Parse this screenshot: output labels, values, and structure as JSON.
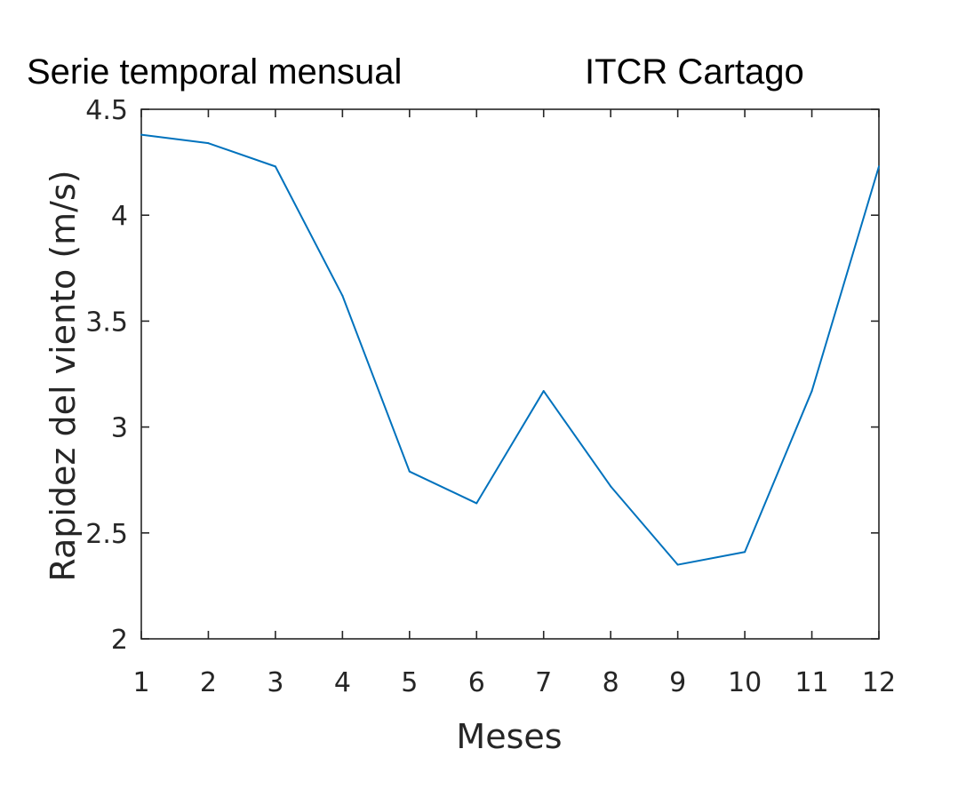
{
  "chart_data": {
    "type": "line",
    "title_left": "Serie temporal mensual",
    "title_right": "ITCR Cartago",
    "xlabel": "Meses",
    "ylabel": "Rapidez del viento (m/s)",
    "x": [
      1,
      2,
      3,
      4,
      5,
      6,
      7,
      8,
      9,
      10,
      11,
      12
    ],
    "xticks": [
      "1",
      "2",
      "3",
      "4",
      "5",
      "6",
      "7",
      "8",
      "9",
      "10",
      "11",
      "12"
    ],
    "yticks": [
      "2",
      "2.5",
      "3",
      "3.5",
      "4",
      "4.5"
    ],
    "xlim": [
      1,
      12
    ],
    "ylim": [
      2,
      4.5
    ],
    "grid": false,
    "series": [
      {
        "values": [
          4.38,
          4.34,
          4.23,
          3.62,
          2.79,
          2.64,
          3.17,
          2.72,
          2.35,
          2.41,
          3.17,
          4.23
        ],
        "color": "#0072BD"
      }
    ]
  }
}
